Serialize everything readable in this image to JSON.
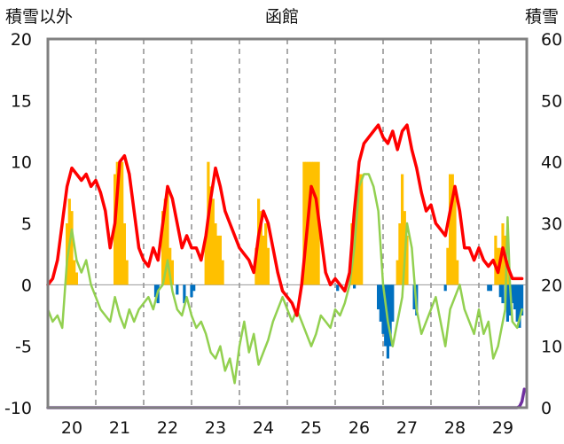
{
  "chart_data": {
    "type": "bar+line",
    "title": "函館",
    "left_axis_label": "積雪以外",
    "right_axis_label": "積雪",
    "left_ticks": [
      "20",
      "15",
      "10",
      "5",
      "0",
      "-5",
      "-10"
    ],
    "right_ticks": [
      "60",
      "50",
      "40",
      "30",
      "20",
      "10",
      "0"
    ],
    "left_ylim": [
      -10,
      20
    ],
    "right_ylim": [
      0,
      60
    ],
    "x_labels": [
      "20",
      "21",
      "22",
      "23",
      "24",
      "25",
      "26",
      "27",
      "28",
      "29"
    ],
    "xlim": [
      19.5,
      29.5
    ],
    "grid": "vertical-dashed",
    "colors": {
      "orange_bars": "#ffc000",
      "blue_bars": "#0070c0",
      "red_line": "#ff0000",
      "green_line": "#92d050",
      "purple_line": "#7030a0",
      "frame": "#808080"
    },
    "orange_bars": [
      [
        19.9,
        5
      ],
      [
        19.95,
        7
      ],
      [
        20.0,
        6
      ],
      [
        20.05,
        2
      ],
      [
        20.1,
        1
      ],
      [
        20.9,
        9
      ],
      [
        20.95,
        10
      ],
      [
        21.0,
        10
      ],
      [
        21.05,
        10
      ],
      [
        21.1,
        5
      ],
      [
        21.15,
        2
      ],
      [
        21.9,
        6
      ],
      [
        21.95,
        7
      ],
      [
        22.0,
        8
      ],
      [
        22.05,
        3
      ],
      [
        22.1,
        2
      ],
      [
        22.8,
        4
      ],
      [
        22.85,
        10
      ],
      [
        22.9,
        8
      ],
      [
        22.95,
        7
      ],
      [
        23.0,
        5
      ],
      [
        23.05,
        4
      ],
      [
        23.1,
        4
      ],
      [
        23.15,
        2
      ],
      [
        23.85,
        3
      ],
      [
        23.9,
        7
      ],
      [
        23.95,
        6
      ],
      [
        24.0,
        4
      ],
      [
        24.05,
        5
      ],
      [
        24.1,
        3
      ],
      [
        24.85,
        10
      ],
      [
        24.9,
        10
      ],
      [
        24.95,
        10
      ],
      [
        25.0,
        10
      ],
      [
        25.05,
        10
      ],
      [
        25.1,
        10
      ],
      [
        25.15,
        10
      ],
      [
        25.85,
        5
      ],
      [
        25.9,
        6
      ],
      [
        25.95,
        8
      ],
      [
        26.0,
        9
      ],
      [
        26.05,
        9
      ],
      [
        26.8,
        2
      ],
      [
        26.85,
        5
      ],
      [
        26.9,
        9
      ],
      [
        26.95,
        6
      ],
      [
        27.0,
        4
      ],
      [
        27.85,
        3
      ],
      [
        27.9,
        9
      ],
      [
        27.95,
        9
      ],
      [
        28.0,
        8
      ],
      [
        28.05,
        2
      ],
      [
        28.85,
        4
      ],
      [
        28.9,
        3
      ],
      [
        28.95,
        3
      ],
      [
        29.0,
        5
      ],
      [
        29.05,
        4
      ],
      [
        29.1,
        2
      ]
    ],
    "blue_bars": [
      [
        21.75,
        -1
      ],
      [
        21.8,
        -1.5
      ],
      [
        22.2,
        -0.8
      ],
      [
        22.35,
        -1.5
      ],
      [
        22.5,
        -1
      ],
      [
        22.55,
        -0.5
      ],
      [
        25.55,
        -0.5
      ],
      [
        25.9,
        -0.3
      ],
      [
        26.4,
        -2
      ],
      [
        26.45,
        -3
      ],
      [
        26.5,
        -4
      ],
      [
        26.55,
        -5
      ],
      [
        26.6,
        -6
      ],
      [
        26.65,
        -5
      ],
      [
        26.7,
        -3
      ],
      [
        27.15,
        -2
      ],
      [
        27.2,
        -2.5
      ],
      [
        27.8,
        -0.5
      ],
      [
        28.7,
        -0.5
      ],
      [
        28.75,
        -0.5
      ],
      [
        28.95,
        -1
      ],
      [
        29.0,
        -1.5
      ],
      [
        29.1,
        -3
      ],
      [
        29.15,
        -2.5
      ],
      [
        29.2,
        -1.5
      ],
      [
        29.25,
        -2
      ],
      [
        29.3,
        -3
      ],
      [
        29.35,
        -3.5
      ],
      [
        29.4,
        -2.5
      ]
    ],
    "red_line": [
      [
        19.5,
        0
      ],
      [
        19.6,
        0.5
      ],
      [
        19.7,
        2
      ],
      [
        19.8,
        5
      ],
      [
        19.9,
        8
      ],
      [
        20.0,
        9.5
      ],
      [
        20.1,
        9
      ],
      [
        20.2,
        8.5
      ],
      [
        20.3,
        9
      ],
      [
        20.4,
        8
      ],
      [
        20.5,
        8.5
      ],
      [
        20.6,
        7.5
      ],
      [
        20.7,
        6
      ],
      [
        20.8,
        3
      ],
      [
        20.9,
        5
      ],
      [
        21.0,
        10
      ],
      [
        21.1,
        10.5
      ],
      [
        21.2,
        9
      ],
      [
        21.3,
        6
      ],
      [
        21.4,
        3
      ],
      [
        21.5,
        2
      ],
      [
        21.6,
        1.5
      ],
      [
        21.7,
        3
      ],
      [
        21.8,
        2
      ],
      [
        21.9,
        5
      ],
      [
        22.0,
        8
      ],
      [
        22.1,
        7
      ],
      [
        22.2,
        5
      ],
      [
        22.3,
        3
      ],
      [
        22.4,
        4
      ],
      [
        22.5,
        3
      ],
      [
        22.6,
        3
      ],
      [
        22.7,
        2
      ],
      [
        22.8,
        4
      ],
      [
        22.9,
        7
      ],
      [
        23.0,
        9.5
      ],
      [
        23.1,
        8
      ],
      [
        23.2,
        6
      ],
      [
        23.3,
        5
      ],
      [
        23.4,
        4
      ],
      [
        23.5,
        3
      ],
      [
        23.6,
        2.5
      ],
      [
        23.7,
        2
      ],
      [
        23.8,
        1
      ],
      [
        23.9,
        4
      ],
      [
        24.0,
        6
      ],
      [
        24.1,
        5
      ],
      [
        24.2,
        3
      ],
      [
        24.3,
        1
      ],
      [
        24.4,
        -0.5
      ],
      [
        24.5,
        -1
      ],
      [
        24.6,
        -1.5
      ],
      [
        24.7,
        -2.5
      ],
      [
        24.8,
        0
      ],
      [
        24.9,
        4
      ],
      [
        25.0,
        8
      ],
      [
        25.1,
        7
      ],
      [
        25.2,
        4
      ],
      [
        25.3,
        1
      ],
      [
        25.4,
        0
      ],
      [
        25.5,
        0.5
      ],
      [
        25.6,
        0
      ],
      [
        25.7,
        -0.5
      ],
      [
        25.8,
        1
      ],
      [
        25.9,
        6
      ],
      [
        26.0,
        10
      ],
      [
        26.1,
        11.5
      ],
      [
        26.2,
        12
      ],
      [
        26.3,
        12.5
      ],
      [
        26.4,
        13
      ],
      [
        26.5,
        12
      ],
      [
        26.6,
        11.5
      ],
      [
        26.7,
        12.5
      ],
      [
        26.8,
        11
      ],
      [
        26.9,
        12.5
      ],
      [
        27.0,
        13
      ],
      [
        27.1,
        11
      ],
      [
        27.2,
        9.5
      ],
      [
        27.3,
        7.5
      ],
      [
        27.4,
        6
      ],
      [
        27.5,
        6.5
      ],
      [
        27.6,
        5
      ],
      [
        27.7,
        4.5
      ],
      [
        27.8,
        4
      ],
      [
        27.9,
        6
      ],
      [
        28.0,
        8
      ],
      [
        28.1,
        6
      ],
      [
        28.2,
        3
      ],
      [
        28.3,
        3
      ],
      [
        28.4,
        2
      ],
      [
        28.5,
        3
      ],
      [
        28.6,
        2
      ],
      [
        28.7,
        1.5
      ],
      [
        28.8,
        2
      ],
      [
        28.9,
        1
      ],
      [
        29.0,
        3
      ],
      [
        29.1,
        1.5
      ],
      [
        29.2,
        0.5
      ],
      [
        29.3,
        0.5
      ],
      [
        29.4,
        0.5
      ]
    ],
    "green_line": [
      [
        19.5,
        -2
      ],
      [
        19.6,
        -3
      ],
      [
        19.7,
        -2.5
      ],
      [
        19.8,
        -3.5
      ],
      [
        19.9,
        2
      ],
      [
        20.0,
        4.5
      ],
      [
        20.1,
        2
      ],
      [
        20.2,
        1
      ],
      [
        20.3,
        2
      ],
      [
        20.4,
        0
      ],
      [
        20.5,
        -1
      ],
      [
        20.6,
        -2
      ],
      [
        20.7,
        -2.5
      ],
      [
        20.8,
        -3
      ],
      [
        20.9,
        -1
      ],
      [
        21.0,
        -2.5
      ],
      [
        21.1,
        -3.5
      ],
      [
        21.2,
        -2
      ],
      [
        21.3,
        -3
      ],
      [
        21.4,
        -2
      ],
      [
        21.5,
        -1.5
      ],
      [
        21.6,
        -1
      ],
      [
        21.7,
        -2
      ],
      [
        21.8,
        -0.5
      ],
      [
        21.9,
        0
      ],
      [
        22.0,
        2
      ],
      [
        22.1,
        -0.5
      ],
      [
        22.2,
        -2
      ],
      [
        22.3,
        -2.5
      ],
      [
        22.4,
        -1
      ],
      [
        22.5,
        -2.5
      ],
      [
        22.6,
        -3.5
      ],
      [
        22.7,
        -3
      ],
      [
        22.8,
        -4
      ],
      [
        22.9,
        -5.5
      ],
      [
        23.0,
        -6
      ],
      [
        23.1,
        -5
      ],
      [
        23.2,
        -7
      ],
      [
        23.3,
        -6
      ],
      [
        23.4,
        -8
      ],
      [
        23.5,
        -5
      ],
      [
        23.6,
        -3
      ],
      [
        23.7,
        -5.5
      ],
      [
        23.8,
        -4
      ],
      [
        23.9,
        -6.5
      ],
      [
        24.0,
        -5.5
      ],
      [
        24.1,
        -4.5
      ],
      [
        24.2,
        -3
      ],
      [
        24.3,
        -2
      ],
      [
        24.4,
        -1
      ],
      [
        24.5,
        -2
      ],
      [
        24.6,
        -3
      ],
      [
        24.7,
        -2
      ],
      [
        24.8,
        -3
      ],
      [
        24.9,
        -4
      ],
      [
        25.0,
        -5
      ],
      [
        25.1,
        -4
      ],
      [
        25.2,
        -2.5
      ],
      [
        25.3,
        -3
      ],
      [
        25.4,
        -3.5
      ],
      [
        25.5,
        -2
      ],
      [
        25.6,
        -2.5
      ],
      [
        25.7,
        -1.5
      ],
      [
        25.8,
        0
      ],
      [
        25.9,
        3
      ],
      [
        26.0,
        8
      ],
      [
        26.1,
        9
      ],
      [
        26.2,
        9
      ],
      [
        26.3,
        8
      ],
      [
        26.4,
        6
      ],
      [
        26.5,
        0
      ],
      [
        26.6,
        -3
      ],
      [
        26.7,
        -5
      ],
      [
        26.8,
        -3
      ],
      [
        26.9,
        -1
      ],
      [
        27.0,
        5
      ],
      [
        27.1,
        3
      ],
      [
        27.2,
        -2
      ],
      [
        27.3,
        -4
      ],
      [
        27.4,
        -3
      ],
      [
        27.5,
        -2
      ],
      [
        27.6,
        -1
      ],
      [
        27.7,
        -3
      ],
      [
        27.8,
        -5
      ],
      [
        27.9,
        -2
      ],
      [
        28.0,
        -1
      ],
      [
        28.1,
        0
      ],
      [
        28.2,
        -2
      ],
      [
        28.3,
        -3
      ],
      [
        28.4,
        -4
      ],
      [
        28.5,
        -2
      ],
      [
        28.6,
        -4
      ],
      [
        28.7,
        -3
      ],
      [
        28.8,
        -6
      ],
      [
        28.9,
        -5
      ],
      [
        29.0,
        -3
      ],
      [
        29.05,
        -2
      ],
      [
        29.1,
        5.5
      ],
      [
        29.15,
        0
      ],
      [
        29.2,
        -3
      ],
      [
        29.3,
        -3.5
      ],
      [
        29.4,
        -2
      ]
    ],
    "purple_line": [
      [
        19.5,
        -10
      ],
      [
        29.3,
        -10
      ],
      [
        29.35,
        -9.9
      ],
      [
        29.4,
        -9.5
      ],
      [
        29.45,
        -8.5
      ]
    ]
  }
}
